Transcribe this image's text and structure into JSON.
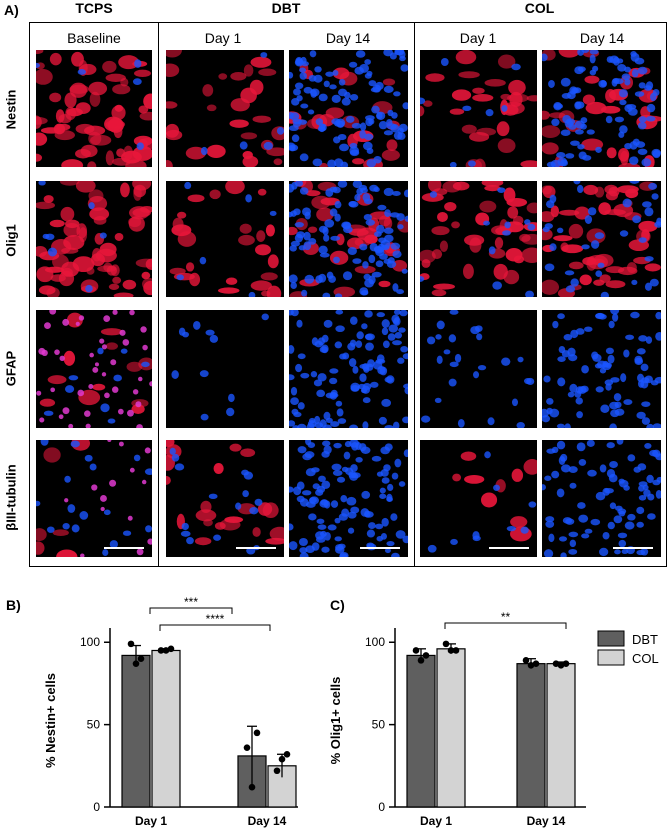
{
  "panel_a": {
    "letter": "A)",
    "groups": [
      "TCPS",
      "DBT",
      "COL"
    ],
    "conditions": [
      "Baseline",
      "Day 1",
      "Day 14",
      "Day 1",
      "Day 14"
    ],
    "markers": [
      "Nestin",
      "Olig1",
      "GFAP",
      "βIII-tubulin"
    ],
    "colors": {
      "red_stain": "#e8163a",
      "nuclei_blue": "#1a55ff",
      "magenta": "#e03ad0"
    }
  },
  "panel_b": {
    "letter": "B)",
    "sig_day1": "***",
    "sig_day14": "****"
  },
  "panel_c": {
    "letter": "C)",
    "sig_between": "**"
  },
  "legend": {
    "items": [
      "DBT",
      "COL"
    ],
    "colors": [
      "#5f5f5f",
      "#d3d3d3"
    ]
  },
  "chart_data": [
    {
      "type": "bar",
      "ylabel": "% Nestin+ cells",
      "categories": [
        "Day 1",
        "Day 14"
      ],
      "yticks": [
        0,
        50,
        100
      ],
      "ylim": [
        0,
        105
      ],
      "series": [
        {
          "name": "DBT",
          "values": [
            92,
            31
          ],
          "error": [
            6,
            18
          ],
          "points": [
            [
              99,
              87,
              90
            ],
            [
              36,
              12,
              45
            ]
          ]
        },
        {
          "name": "COL",
          "values": [
            95,
            25
          ],
          "error": [
            1,
            7
          ],
          "points": [
            [
              95,
              95,
              96
            ],
            [
              22,
              29,
              32
            ]
          ]
        }
      ]
    },
    {
      "type": "bar",
      "ylabel": "% Olig1+ cells",
      "categories": [
        "Day 1",
        "Day 14"
      ],
      "yticks": [
        0,
        50,
        100
      ],
      "ylim": [
        0,
        105
      ],
      "series": [
        {
          "name": "DBT",
          "values": [
            92,
            87
          ],
          "error": [
            4,
            3
          ],
          "points": [
            [
              95,
              89,
              92
            ],
            [
              89,
              86,
              87
            ]
          ]
        },
        {
          "name": "COL",
          "values": [
            96,
            87
          ],
          "error": [
            3,
            1
          ],
          "points": [
            [
              99,
              95,
              95
            ],
            [
              87,
              86,
              87
            ]
          ]
        }
      ]
    }
  ]
}
